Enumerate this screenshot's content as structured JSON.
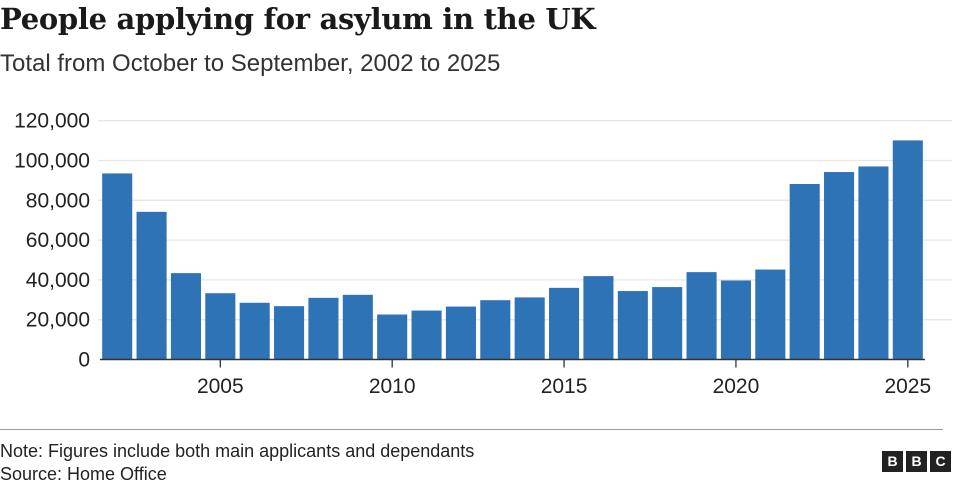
{
  "chart_data": {
    "type": "bar",
    "title": "People applying for asylum in the UK",
    "subtitle": "Total from October to September, 2002 to 2025",
    "xlabel": "",
    "ylabel": "",
    "categories": [
      2002,
      2003,
      2004,
      2005,
      2006,
      2007,
      2008,
      2009,
      2010,
      2011,
      2012,
      2013,
      2014,
      2015,
      2016,
      2017,
      2018,
      2019,
      2020,
      2021,
      2022,
      2023,
      2024,
      2025
    ],
    "values": [
      93500,
      74200,
      43400,
      33300,
      28500,
      26800,
      31000,
      32500,
      22600,
      24600,
      26600,
      29800,
      31200,
      36000,
      41900,
      34400,
      36400,
      43900,
      39700,
      45200,
      88200,
      94200,
      97000,
      110100
    ],
    "ylim": [
      0,
      120000
    ],
    "yticks": [
      0,
      20000,
      40000,
      60000,
      80000,
      100000,
      120000
    ],
    "ytick_labels": [
      "0",
      "20,000",
      "40,000",
      "60,000",
      "80,000",
      "100,000",
      "120,000"
    ],
    "xticks": [
      2005,
      2010,
      2015,
      2020,
      2025
    ],
    "xtick_labels": [
      "2005",
      "2010",
      "2015",
      "2020",
      "2025"
    ],
    "grid": true,
    "bar_color": "#2e73b5"
  },
  "footer": {
    "note": "Note: Figures include both main applicants and dependants",
    "source": "Source: Home Office",
    "logo_letters": [
      "B",
      "B",
      "C"
    ]
  }
}
